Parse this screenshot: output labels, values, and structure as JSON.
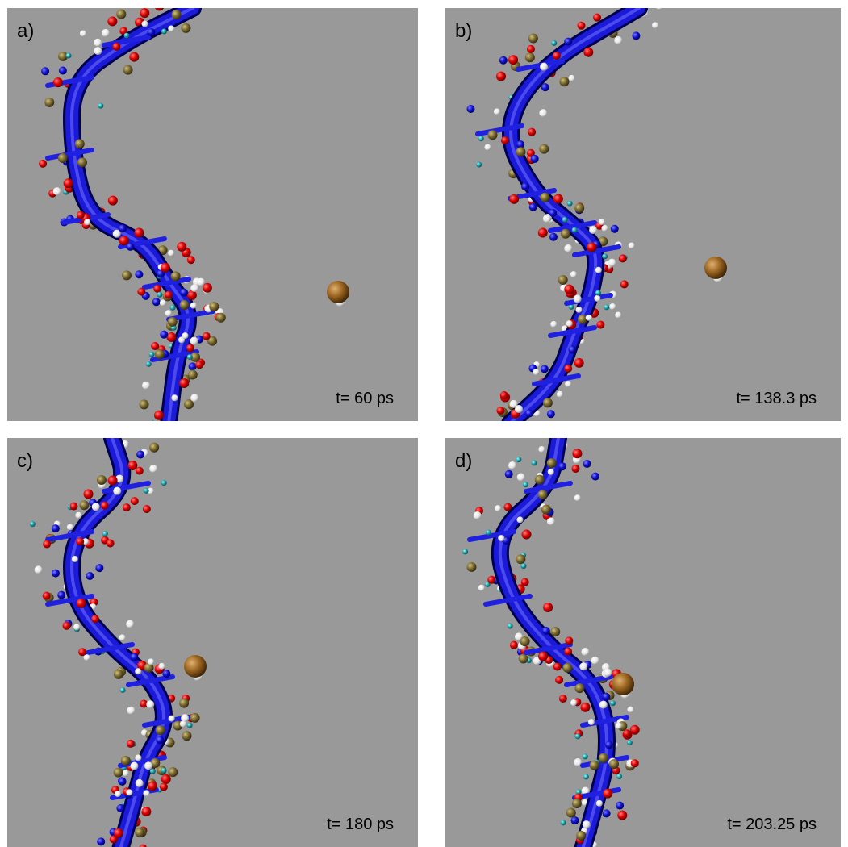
{
  "panels": [
    {
      "label": "a)",
      "time": "t= 60 ps"
    },
    {
      "label": "b)",
      "time": "t= 138.3 ps"
    },
    {
      "label": "c)",
      "time": "t= 180 ps"
    },
    {
      "label": "d)",
      "time": "t= 203.25 ps"
    }
  ]
}
